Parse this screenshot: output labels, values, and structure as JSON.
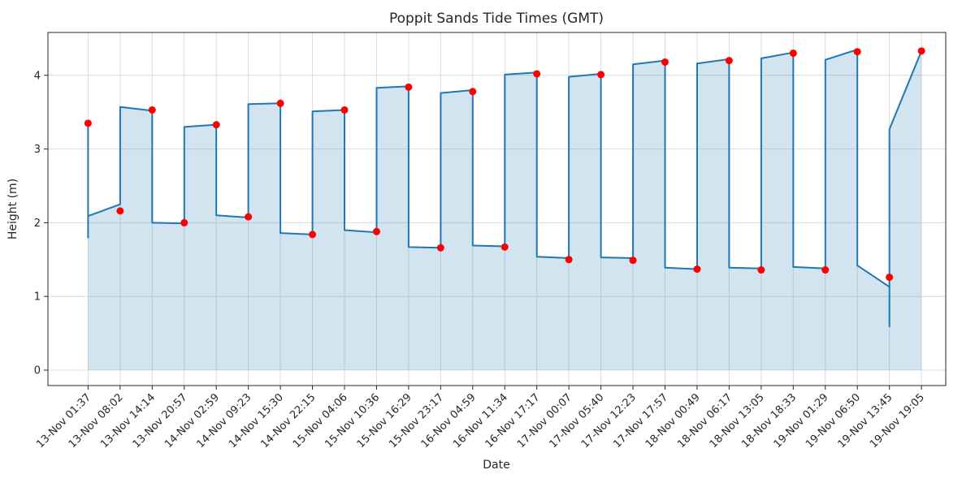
{
  "title": "Poppit Sands Tide Times (GMT)",
  "chart_data": {
    "type": "line",
    "title": "Poppit Sands Tide Times (GMT)",
    "xlabel": "Date",
    "ylabel": "Height (m)",
    "grid": true,
    "legend": "none",
    "y_ticks": [
      0,
      1,
      2,
      3,
      4
    ],
    "ylim": [
      -0.21,
      4.58
    ],
    "x_tick_labels": [
      "13-Nov 01:37",
      "13-Nov 08:02",
      "13-Nov 14:14",
      "13-Nov 20:57",
      "14-Nov 02:59",
      "14-Nov 09:23",
      "14-Nov 15:30",
      "14-Nov 22:15",
      "15-Nov 04:06",
      "15-Nov 10:36",
      "15-Nov 16:29",
      "15-Nov 23:17",
      "16-Nov 04:59",
      "16-Nov 11:34",
      "16-Nov 17:17",
      "17-Nov 00:07",
      "17-Nov 05:40",
      "17-Nov 12:23",
      "17-Nov 17:57",
      "18-Nov 00:49",
      "18-Nov 06:17",
      "18-Nov 13:05",
      "18-Nov 18:33",
      "19-Nov 01:29",
      "19-Nov 06:50",
      "19-Nov 13:45",
      "19-Nov 19:05"
    ],
    "events": [
      {
        "label": "13-Nov 01:37",
        "height": 3.35,
        "type": "high"
      },
      {
        "label": "13-Nov 08:02",
        "height": 2.16,
        "type": "low"
      },
      {
        "label": "13-Nov 14:14",
        "height": 3.53,
        "type": "high"
      },
      {
        "label": "13-Nov 20:57",
        "height": 2.0,
        "type": "low"
      },
      {
        "label": "14-Nov 02:59",
        "height": 3.33,
        "type": "high"
      },
      {
        "label": "14-Nov 09:23",
        "height": 2.08,
        "type": "low"
      },
      {
        "label": "14-Nov 15:30",
        "height": 3.62,
        "type": "high"
      },
      {
        "label": "14-Nov 22:15",
        "height": 1.84,
        "type": "low"
      },
      {
        "label": "15-Nov 04:06",
        "height": 3.53,
        "type": "high"
      },
      {
        "label": "15-Nov 10:36",
        "height": 1.88,
        "type": "low"
      },
      {
        "label": "15-Nov 16:29",
        "height": 3.84,
        "type": "high"
      },
      {
        "label": "15-Nov 23:17",
        "height": 1.66,
        "type": "low"
      },
      {
        "label": "16-Nov 04:59",
        "height": 3.78,
        "type": "high"
      },
      {
        "label": "16-Nov 11:34",
        "height": 1.67,
        "type": "low"
      },
      {
        "label": "16-Nov 17:17",
        "height": 4.02,
        "type": "high"
      },
      {
        "label": "17-Nov 00:07",
        "height": 1.5,
        "type": "low"
      },
      {
        "label": "17-Nov 05:40",
        "height": 4.01,
        "type": "high"
      },
      {
        "label": "17-Nov 12:23",
        "height": 1.49,
        "type": "low"
      },
      {
        "label": "17-Nov 17:57",
        "height": 4.18,
        "type": "high"
      },
      {
        "label": "18-Nov 00:49",
        "height": 1.37,
        "type": "low"
      },
      {
        "label": "18-Nov 06:17",
        "height": 4.2,
        "type": "high"
      },
      {
        "label": "18-Nov 13:05",
        "height": 1.36,
        "type": "low"
      },
      {
        "label": "18-Nov 18:33",
        "height": 4.3,
        "type": "high"
      },
      {
        "label": "19-Nov 01:29",
        "height": 1.36,
        "type": "low"
      },
      {
        "label": "19-Nov 06:50",
        "height": 4.32,
        "type": "high"
      },
      {
        "label": "19-Nov 13:45",
        "height": 1.26,
        "type": "low"
      },
      {
        "label": "19-Nov 19:05",
        "height": 4.33,
        "type": "high"
      }
    ],
    "line_path": [
      [
        0,
        3.35
      ],
      [
        0,
        1.8
      ],
      [
        0,
        2.09
      ],
      [
        1,
        2.25
      ],
      [
        1,
        3.57
      ],
      [
        2,
        3.52
      ],
      [
        2,
        2.0
      ],
      [
        3,
        1.99
      ],
      [
        3,
        3.3
      ],
      [
        4,
        3.33
      ],
      [
        4,
        2.1
      ],
      [
        5,
        2.07
      ],
      [
        5,
        3.61
      ],
      [
        6,
        3.62
      ],
      [
        6,
        1.86
      ],
      [
        7,
        1.84
      ],
      [
        7,
        3.51
      ],
      [
        8,
        3.53
      ],
      [
        8,
        1.9
      ],
      [
        9,
        1.87
      ],
      [
        9,
        3.83
      ],
      [
        10,
        3.85
      ],
      [
        10,
        1.67
      ],
      [
        11,
        1.66
      ],
      [
        11,
        3.76
      ],
      [
        12,
        3.8
      ],
      [
        12,
        1.69
      ],
      [
        13,
        1.68
      ],
      [
        13,
        4.01
      ],
      [
        14,
        4.04
      ],
      [
        14,
        1.54
      ],
      [
        15,
        1.52
      ],
      [
        15,
        3.98
      ],
      [
        16,
        4.02
      ],
      [
        16,
        1.53
      ],
      [
        17,
        1.52
      ],
      [
        17,
        4.15
      ],
      [
        18,
        4.2
      ],
      [
        18,
        1.39
      ],
      [
        19,
        1.37
      ],
      [
        19,
        4.16
      ],
      [
        20,
        4.22
      ],
      [
        20,
        1.39
      ],
      [
        21,
        1.38
      ],
      [
        21,
        4.23
      ],
      [
        22,
        4.31
      ],
      [
        22,
        1.4
      ],
      [
        23,
        1.38
      ],
      [
        23,
        4.21
      ],
      [
        24,
        4.35
      ],
      [
        24,
        1.42
      ],
      [
        25,
        1.13
      ],
      [
        25,
        0.59
      ],
      [
        25,
        3.27
      ],
      [
        26,
        4.33
      ]
    ],
    "fill_path": [
      [
        0,
        2.09
      ],
      [
        1,
        2.25
      ],
      [
        1,
        3.57
      ],
      [
        2,
        3.52
      ],
      [
        2,
        2.0
      ],
      [
        3,
        1.99
      ],
      [
        3,
        3.3
      ],
      [
        4,
        3.33
      ],
      [
        4,
        2.1
      ],
      [
        5,
        2.07
      ],
      [
        5,
        3.61
      ],
      [
        6,
        3.62
      ],
      [
        6,
        1.86
      ],
      [
        7,
        1.84
      ],
      [
        7,
        3.51
      ],
      [
        8,
        3.53
      ],
      [
        8,
        1.9
      ],
      [
        9,
        1.87
      ],
      [
        9,
        3.83
      ],
      [
        10,
        3.85
      ],
      [
        10,
        1.67
      ],
      [
        11,
        1.66
      ],
      [
        11,
        3.76
      ],
      [
        12,
        3.8
      ],
      [
        12,
        1.69
      ],
      [
        13,
        1.68
      ],
      [
        13,
        4.01
      ],
      [
        14,
        4.04
      ],
      [
        14,
        1.54
      ],
      [
        15,
        1.52
      ],
      [
        15,
        3.98
      ],
      [
        16,
        4.02
      ],
      [
        16,
        1.53
      ],
      [
        17,
        1.52
      ],
      [
        17,
        4.15
      ],
      [
        18,
        4.2
      ],
      [
        18,
        1.39
      ],
      [
        19,
        1.37
      ],
      [
        19,
        4.16
      ],
      [
        20,
        4.22
      ],
      [
        20,
        1.39
      ],
      [
        21,
        1.38
      ],
      [
        21,
        4.23
      ],
      [
        22,
        4.31
      ],
      [
        22,
        1.4
      ],
      [
        23,
        1.38
      ],
      [
        23,
        4.21
      ],
      [
        24,
        4.35
      ],
      [
        24,
        1.42
      ],
      [
        25,
        1.13
      ],
      [
        25,
        3.27
      ],
      [
        26,
        4.33
      ]
    ],
    "colors": {
      "line": "#1f77b4",
      "marker": "#ff0000",
      "fill": "#1f77b4",
      "fill_opacity": 0.2,
      "grid": "#dcdcdc",
      "spine": "#262626",
      "text": "#262626"
    }
  }
}
